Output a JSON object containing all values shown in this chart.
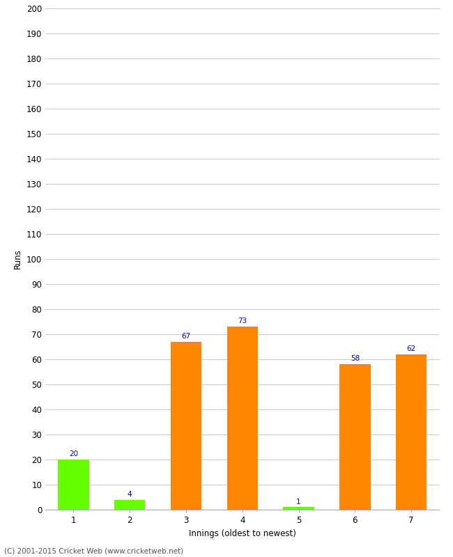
{
  "categories": [
    "1",
    "2",
    "3",
    "4",
    "5",
    "6",
    "7"
  ],
  "values": [
    20,
    4,
    67,
    73,
    1,
    58,
    62
  ],
  "bar_colors": [
    "#66ff00",
    "#66ff00",
    "#ff8800",
    "#ff8800",
    "#66ff00",
    "#ff8800",
    "#ff8800"
  ],
  "ylabel": "Runs",
  "xlabel": "Innings (oldest to newest)",
  "ylim": [
    0,
    200
  ],
  "yticks": [
    0,
    10,
    20,
    30,
    40,
    50,
    60,
    70,
    80,
    90,
    100,
    110,
    120,
    130,
    140,
    150,
    160,
    170,
    180,
    190,
    200
  ],
  "value_label_color": "#0000cc",
  "value_label_fontsize": 7.5,
  "footer": "(C) 2001-2015 Cricket Web (www.cricketweb.net)",
  "background_color": "#ffffff",
  "grid_color": "#cccccc",
  "bar_width": 0.55
}
